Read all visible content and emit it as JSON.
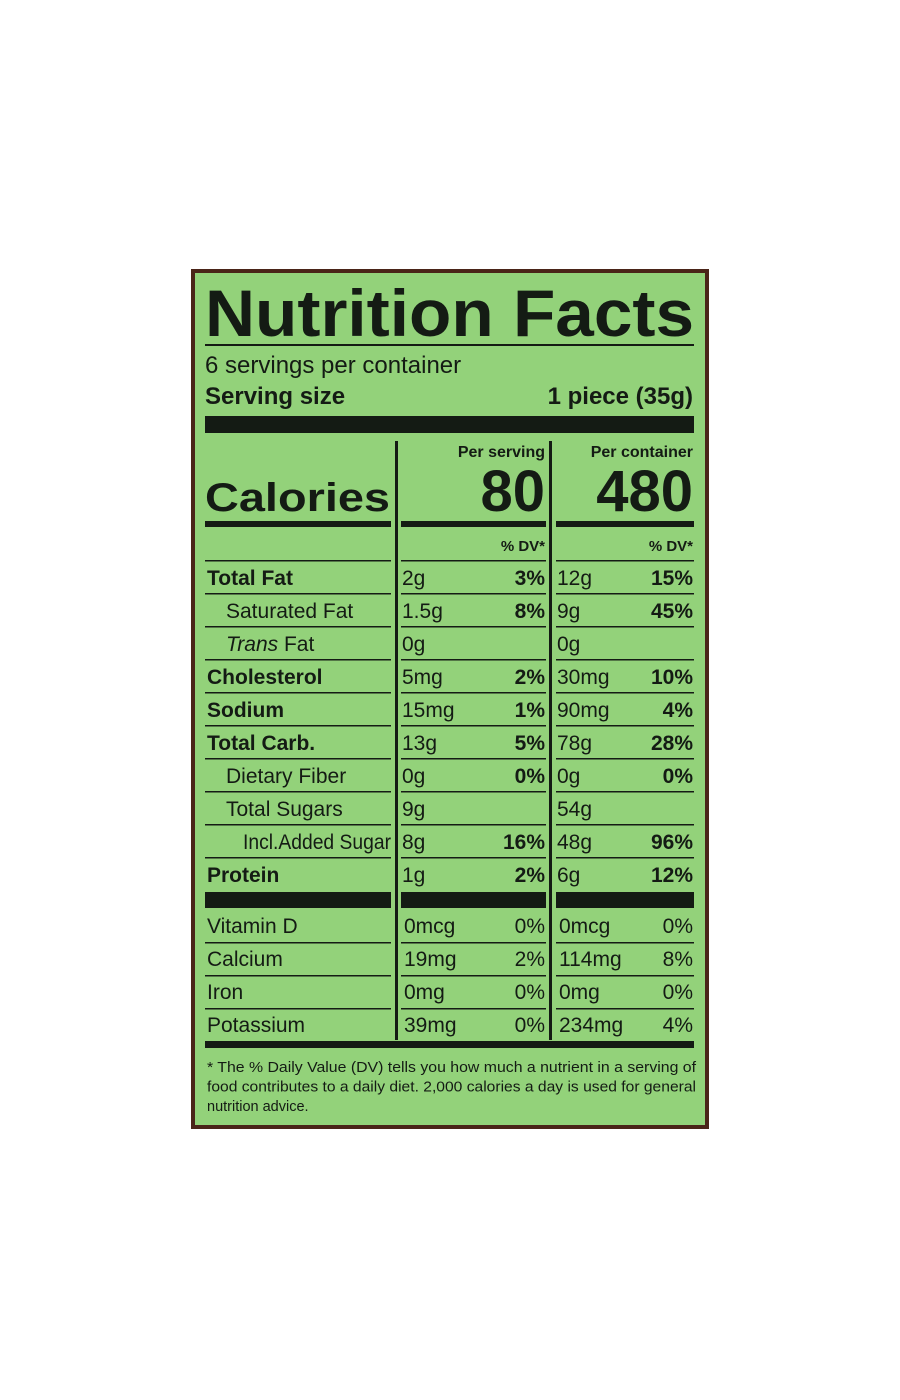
{
  "header": {
    "title": "Nutrition Facts",
    "servings": "6 servings per container",
    "serving_size_label": "Serving size",
    "serving_size": "1 piece (35g)"
  },
  "calories": {
    "label": "Calories",
    "columns": [
      {
        "heading": "Per serving",
        "value": "80",
        "dv_heading": "% DV*"
      },
      {
        "heading": "Per container",
        "value": "480",
        "dv_heading": "% DV*"
      }
    ]
  },
  "nutrients": [
    {
      "name": [
        "Total Fat"
      ],
      "level": 0,
      "serving": "2g",
      "serving_dv": "3%",
      "container": "12g",
      "container_dv": "15%"
    },
    {
      "name": [
        "Saturated Fat"
      ],
      "level": 1,
      "serving": "1.5g",
      "serving_dv": "8%",
      "container": "9g",
      "container_dv": "45%"
    },
    {
      "name": [
        "Trans",
        " Fat"
      ],
      "level": 1,
      "serving": "0g",
      "container": "0g"
    },
    {
      "name": [
        "Cholesterol"
      ],
      "level": 0,
      "serving": "5mg",
      "serving_dv": "2%",
      "container": "30mg",
      "container_dv": "10%"
    },
    {
      "name": [
        "Sodium"
      ],
      "level": 0,
      "serving": "15mg",
      "serving_dv": "1%",
      "container": "90mg",
      "container_dv": "4%"
    },
    {
      "name": [
        "Total Carb."
      ],
      "level": 0,
      "serving": "13g",
      "serving_dv": "5%",
      "container": "78g",
      "container_dv": "28%"
    },
    {
      "name": [
        "Dietary Fiber"
      ],
      "level": 1,
      "serving": "0g",
      "serving_dv": "0%",
      "container": "0g",
      "container_dv": "0%"
    },
    {
      "name": [
        "Total Sugars"
      ],
      "level": 1,
      "serving": "9g",
      "container": "54g"
    },
    {
      "name": [
        "Incl.Added Sugar"
      ],
      "level": 2,
      "serving": "8g",
      "serving_dv": "16%",
      "container": "48g",
      "container_dv": "96%"
    },
    {
      "name": [
        "Protein"
      ],
      "level": 0,
      "serving": "1g",
      "serving_dv": "2%",
      "container": "6g",
      "container_dv": "12%"
    }
  ],
  "vitamins": [
    {
      "name": "Vitamin D",
      "serving": "0mcg",
      "serving_dv": "0%",
      "container": "0mcg",
      "container_dv": "0%"
    },
    {
      "name": "Calcium",
      "serving": "19mg",
      "serving_dv": "2%",
      "container": "114mg",
      "container_dv": "8%"
    },
    {
      "name": "Iron",
      "serving": "0mg",
      "serving_dv": "0%",
      "container": "0mg",
      "container_dv": "0%"
    },
    {
      "name": "Potassium",
      "serving": "39mg",
      "serving_dv": "0%",
      "container": "234mg",
      "container_dv": "4%"
    }
  ],
  "footnote": [
    "* The % Daily Value (DV) tells you how much a nutrient in a serving of",
    "food contributes to a daily diet. 2,000 calories a day is used for general",
    "nutrition advice."
  ]
}
